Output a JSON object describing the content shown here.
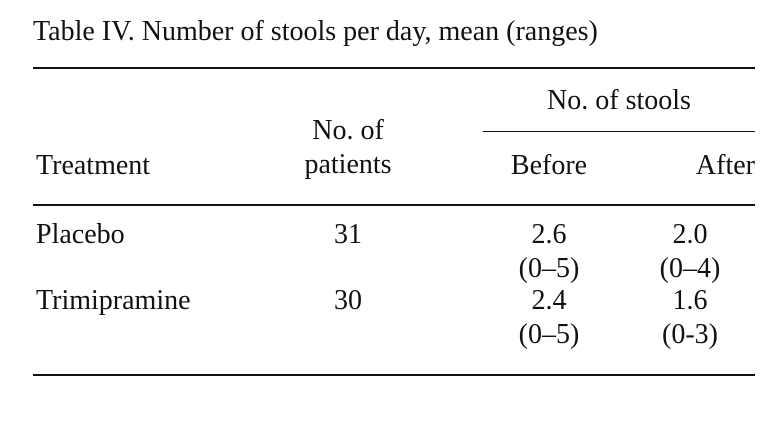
{
  "caption": "Table IV. Number of stools per day, mean (ranges)",
  "table": {
    "header": {
      "treatment": "Treatment",
      "patients_line1": "No. of",
      "patients_line2": "patients",
      "stools_group": "No. of stools",
      "before": "Before",
      "after": "After"
    },
    "rows": [
      {
        "treatment": "Placebo",
        "patients": "31",
        "before_mean": "2.6",
        "before_range": "(0–5)",
        "after_mean": "2.0",
        "after_range": "(0–4)"
      },
      {
        "treatment": "Trimipramine",
        "patients": "30",
        "before_mean": "2.4",
        "before_range": "(0–5)",
        "after_mean": "1.6",
        "after_range": "(0-3)"
      }
    ]
  }
}
